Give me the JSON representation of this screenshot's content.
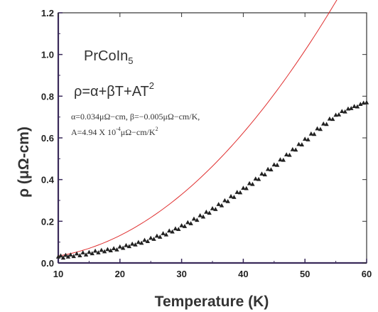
{
  "chart_data": {
    "type": "scatter",
    "title": "",
    "xlabel": "Temperature  (K)",
    "ylabel": "ρ (μΩ-cm)",
    "xlim": [
      10,
      60
    ],
    "ylim": [
      0.0,
      1.2
    ],
    "x_ticks": [
      "10",
      "20",
      "30",
      "40",
      "50",
      "60"
    ],
    "y_ticks": [
      "0.0",
      "0.2",
      "0.4",
      "0.6",
      "0.8",
      "1.0",
      "1.2"
    ],
    "grid": false,
    "colors": {
      "axis": "#3a2a5a",
      "points": "#222222",
      "fit": "#e03030"
    },
    "annotations": {
      "compound": "PrCoIn",
      "compound_sub": "5",
      "formula": "ρ=α+βT+AT",
      "formula_sup": "2",
      "params_line1": "α=0.034μΩ−cm,  β=−0.005μΩ−cm/K,",
      "params_line2a": "A=4.94 X 10",
      "params_line2_exp": "-4",
      "params_line2b": "μΩ−cm/K",
      "params_line2_sup": "2"
    },
    "series": [
      {
        "marker": "triangle",
        "x": [
          10.0,
          10.4,
          10.8,
          11.2,
          11.6,
          12.0,
          12.5,
          13.0,
          13.5,
          14.0,
          14.5,
          15.0,
          15.5,
          16.0,
          16.5,
          17.0,
          17.5,
          18.0,
          18.5,
          19.0,
          19.5,
          20.0,
          20.5,
          21.0,
          21.5,
          22.0,
          22.5,
          23.0,
          23.5,
          24.0,
          24.5,
          25.0,
          25.5,
          26.0,
          26.5,
          27.0,
          27.5,
          28.0,
          28.5,
          29.0,
          29.5,
          30.0,
          30.5,
          31.0,
          31.5,
          32.0,
          32.5,
          33.0,
          33.5,
          34.0,
          34.5,
          35.0,
          35.5,
          36.0,
          36.5,
          37.0,
          37.5,
          38.0,
          38.5,
          39.0,
          39.5,
          40.0,
          40.5,
          41.0,
          41.5,
          42.0,
          42.5,
          43.0,
          43.5,
          44.0,
          44.5,
          45.0,
          45.5,
          46.0,
          46.5,
          47.0,
          47.5,
          48.0,
          48.5,
          49.0,
          49.5,
          50.0,
          50.5,
          51.0,
          51.5,
          52.0,
          52.5,
          53.0,
          53.5,
          54.0,
          54.5,
          55.0,
          55.5,
          56.0,
          56.5,
          57.0,
          57.5,
          58.0,
          58.5,
          59.0,
          59.5,
          60.0
        ],
        "y": [
          0.03,
          0.035,
          0.025,
          0.038,
          0.03,
          0.04,
          0.032,
          0.045,
          0.036,
          0.05,
          0.04,
          0.052,
          0.046,
          0.058,
          0.05,
          0.062,
          0.055,
          0.066,
          0.06,
          0.07,
          0.064,
          0.078,
          0.072,
          0.085,
          0.08,
          0.092,
          0.088,
          0.1,
          0.096,
          0.11,
          0.104,
          0.12,
          0.115,
          0.13,
          0.125,
          0.142,
          0.136,
          0.155,
          0.15,
          0.165,
          0.162,
          0.18,
          0.176,
          0.195,
          0.19,
          0.212,
          0.206,
          0.228,
          0.222,
          0.245,
          0.24,
          0.262,
          0.258,
          0.282,
          0.276,
          0.3,
          0.296,
          0.32,
          0.316,
          0.34,
          0.338,
          0.36,
          0.358,
          0.382,
          0.378,
          0.404,
          0.402,
          0.428,
          0.424,
          0.45,
          0.448,
          0.472,
          0.47,
          0.496,
          0.494,
          0.52,
          0.518,
          0.545,
          0.543,
          0.57,
          0.568,
          0.595,
          0.592,
          0.62,
          0.618,
          0.645,
          0.642,
          0.668,
          0.666,
          0.692,
          0.69,
          0.71,
          0.712,
          0.728,
          0.726,
          0.74,
          0.742,
          0.752,
          0.75,
          0.762,
          0.768,
          0.77
        ]
      },
      {
        "type": "line",
        "fit": {
          "alpha": 0.034,
          "beta": -0.005,
          "A": 0.000494
        }
      }
    ]
  }
}
